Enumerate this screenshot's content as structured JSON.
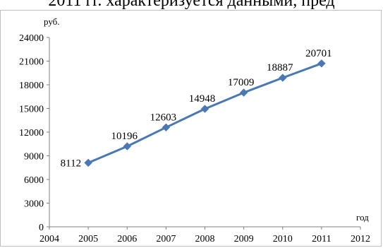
{
  "page": {
    "top_text": "2011 гг. характеризуется данными, пред"
  },
  "chart_data": {
    "type": "line",
    "title": "",
    "xlabel": "год",
    "ylabel": "руб.",
    "xlim": [
      2004,
      2012
    ],
    "ylim": [
      0,
      24000
    ],
    "x_ticks": [
      "2004",
      "2005",
      "2006",
      "2007",
      "2008",
      "2009",
      "2010",
      "2011",
      "2012"
    ],
    "y_ticks": [
      "0",
      "3000",
      "6000",
      "9000",
      "12000",
      "15000",
      "18000",
      "21000",
      "24000"
    ],
    "grid": false,
    "legend": "none",
    "series": [
      {
        "color": "#4a78b5",
        "x": [
          2005,
          2006,
          2007,
          2008,
          2009,
          2010,
          2011
        ],
        "values": [
          8112,
          10196,
          12603,
          14948,
          17009,
          18887,
          20701
        ],
        "labels": [
          "8112",
          "10196",
          "12603",
          "14948",
          "17009",
          "18887",
          "20701"
        ]
      }
    ]
  }
}
